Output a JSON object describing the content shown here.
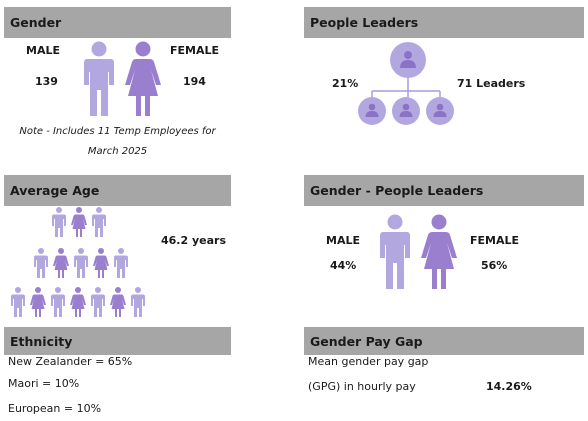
{
  "colors": {
    "header_bg": "#a6a6a6",
    "light_purple": "#b3a7df",
    "dark_purple": "#9a7fcf",
    "mid_purple": "#a99ae0"
  },
  "gender": {
    "title": "Gender",
    "male_label": "MALE",
    "male_count": "139",
    "female_label": "FEMALE",
    "female_count": "194",
    "note_line1": "Note - Includes 11 Temp Employees for",
    "note_line2": "March 2025"
  },
  "people_leaders": {
    "title": "People Leaders",
    "percent": "21%",
    "count": "71 Leaders"
  },
  "average_age": {
    "title": "Average Age",
    "value": "46.2 years"
  },
  "gender_leaders": {
    "title": "Gender - People Leaders",
    "male_label": "MALE",
    "male_percent": "44%",
    "female_label": "FEMALE",
    "female_percent": "56%"
  },
  "ethnicity": {
    "title": "Ethnicity",
    "items": [
      "New Zealander = 65%",
      "Maori = 10%",
      "European = 10%"
    ]
  },
  "pay_gap": {
    "title": "Gender Pay Gap",
    "line1": "Mean gender pay gap",
    "line2": "(GPG) in hourly pay",
    "value": "14.26%"
  }
}
